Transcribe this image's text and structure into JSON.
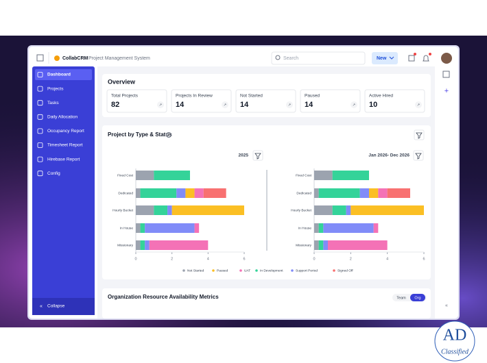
{
  "app": {
    "brand": "CollabCRM",
    "subtitle": "Project Management System",
    "search_placeholder": "Search",
    "new_button": "New"
  },
  "sidebar": {
    "items": [
      "Dashboard",
      "Projects",
      "Tasks",
      "Daily Allocation",
      "Occupancy Report",
      "Timesheet Report",
      "Hirebase Report",
      "Config"
    ],
    "collapse": "Collapse"
  },
  "overview": {
    "title": "Overview",
    "stats": [
      {
        "label": "Total Projects",
        "value": 82
      },
      {
        "label": "Projects In Review",
        "value": 14
      },
      {
        "label": "Not Started",
        "value": 14
      },
      {
        "label": "Paused",
        "value": 14
      },
      {
        "label": "Active Hired",
        "value": 10
      }
    ]
  },
  "project_chart": {
    "title": "Project by Type & Status",
    "categories": [
      "Fixed Cost",
      "Dedicated",
      "Hourly Bucket",
      "In House",
      "Missionary"
    ],
    "xlim": [
      0,
      6
    ],
    "xticks": [
      0,
      2,
      4,
      6
    ],
    "legend": [
      {
        "name": "Not Started",
        "color": "#9ca3af"
      },
      {
        "name": "Paused",
        "color": "#fbbf24"
      },
      {
        "name": "UAT",
        "color": "#f472b6"
      },
      {
        "name": "In Development",
        "color": "#34d399"
      },
      {
        "name": "Support Period",
        "color": "#818cf8"
      },
      {
        "name": "Signed Off",
        "color": "#f87171"
      }
    ],
    "charts": [
      {
        "type": "bar",
        "orientation": "horizontal",
        "stacked": true,
        "period": "2025",
        "series": [
          {
            "values": [
              1,
              0.25,
              1,
              0.25,
              0.25
            ]
          },
          {
            "values": [
              0,
              0.5,
              4,
              0,
              0
            ]
          },
          {
            "values": [
              0,
              0.5,
              0,
              0.25,
              3.25
            ]
          },
          {
            "values": [
              2,
              2,
              0.75,
              0.25,
              0.25
            ]
          },
          {
            "values": [
              0,
              0.5,
              0.25,
              2.75,
              0.25
            ]
          },
          {
            "values": [
              0,
              1.25,
              0,
              0,
              0
            ]
          }
        ]
      },
      {
        "type": "bar",
        "orientation": "horizontal",
        "stacked": true,
        "period": "Jan 2026- Dec 2026",
        "series": [
          {
            "values": [
              1,
              0.25,
              1,
              0.25,
              0.25
            ]
          },
          {
            "values": [
              0,
              0.5,
              4,
              0,
              0
            ]
          },
          {
            "values": [
              0,
              0.5,
              0,
              0.25,
              3.25
            ]
          },
          {
            "values": [
              2,
              2.25,
              0.75,
              0.25,
              0.25
            ]
          },
          {
            "values": [
              0,
              0.5,
              0.25,
              2.75,
              0.25
            ]
          },
          {
            "values": [
              0,
              1.25,
              0,
              0,
              0
            ]
          }
        ]
      }
    ]
  },
  "availability": {
    "title": "Organization Resource Availability Metrics",
    "toggle": [
      "Team",
      "Org"
    ]
  },
  "badge": {
    "mark": "AD",
    "caption": "Classified"
  }
}
